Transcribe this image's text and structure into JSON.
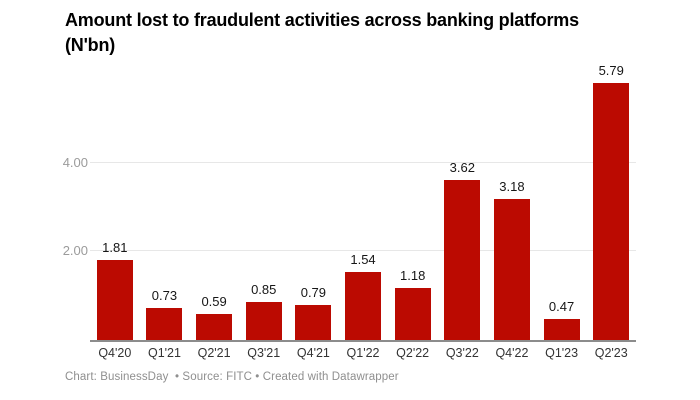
{
  "title": "Amount lost to fraudulent activities across banking platforms (N'bn)",
  "footer": "Chart: BusinessDay  • Source: FITC • Created with Datawrapper",
  "colors": {
    "bar": "#bb0a01",
    "gridline": "#e7e7e7",
    "axis_line": "#8c8c8c",
    "value_label": "#161616",
    "x_label": "#333333",
    "y_label": "#9b9b9b",
    "footer_text": "#8f8f8f",
    "background": "#ffffff"
  },
  "chart_data": {
    "type": "bar",
    "title": "Amount lost to fraudulent activities across banking platforms (N'bn)",
    "unit": "N'bn",
    "categories": [
      "Q4'20",
      "Q1'21",
      "Q2'21",
      "Q3'21",
      "Q4'21",
      "Q1'22",
      "Q2'22",
      "Q3'22",
      "Q4'22",
      "Q1'23",
      "Q2'23"
    ],
    "values": [
      1.81,
      0.73,
      0.59,
      0.85,
      0.79,
      1.54,
      1.18,
      3.62,
      3.18,
      0.47,
      5.79
    ],
    "value_labels": [
      "1.81",
      "0.73",
      "0.59",
      "0.85",
      "0.79",
      "1.54",
      "1.18",
      "3.62",
      "3.18",
      "0.47",
      "5.79"
    ],
    "xlabel": "",
    "ylabel": "",
    "ylim": [
      0,
      6
    ],
    "yticks": [
      {
        "value": 2,
        "label": "2.00"
      },
      {
        "value": 4,
        "label": "4.00"
      }
    ],
    "grid": "horizontal",
    "legend": "none",
    "data_labels": "above-bars",
    "source_line": "Chart: BusinessDay • Source: FITC • Created with Datawrapper"
  }
}
